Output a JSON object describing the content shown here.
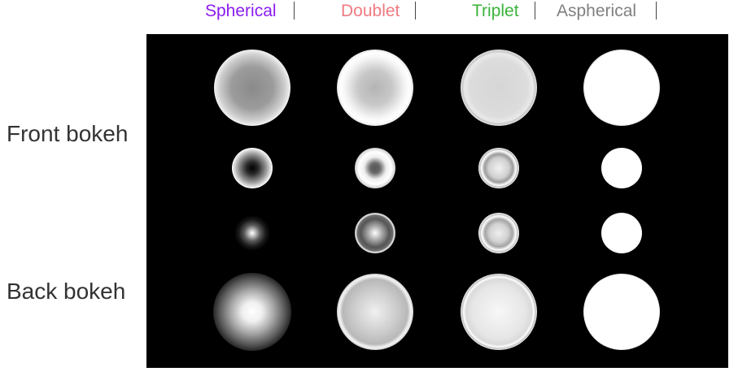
{
  "columns": [
    {
      "label": "Spherical",
      "color": "#8a1cf0"
    },
    {
      "label": "Doublet",
      "color": "#f07a80"
    },
    {
      "label": "Triplet",
      "color": "#3ab43a"
    },
    {
      "label": "Aspherical",
      "color": "#808080"
    }
  ],
  "row_labels": {
    "front": "Front bokeh",
    "back": "Back bokeh"
  },
  "colors": {
    "panel_background": "#000000",
    "row_label": "#333333",
    "separator": "#444444"
  }
}
